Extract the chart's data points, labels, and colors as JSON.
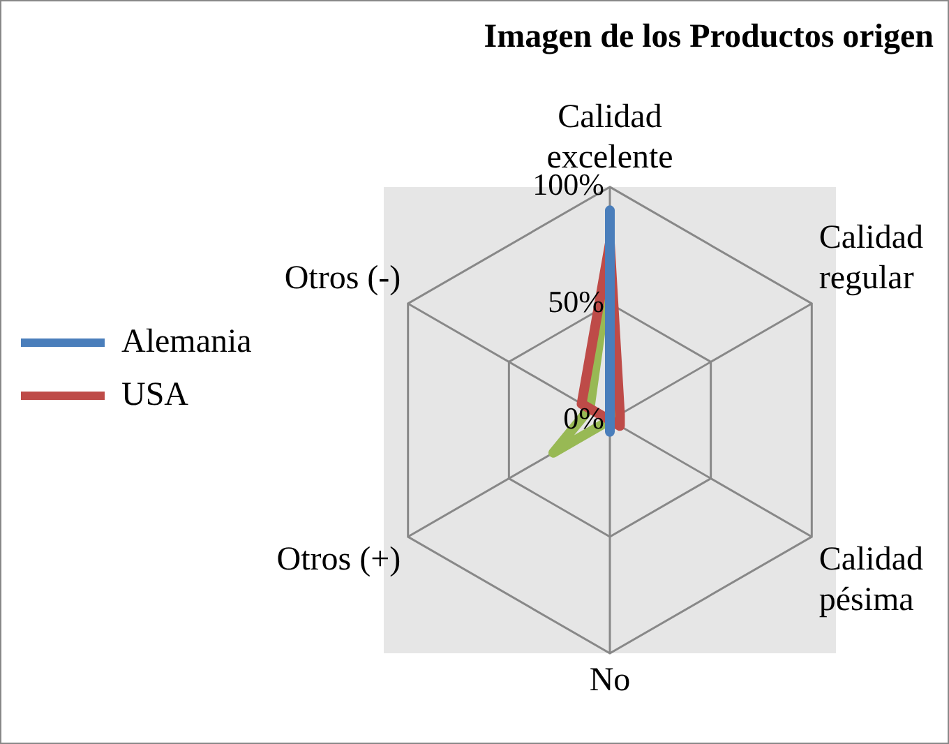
{
  "chart_data": {
    "type": "radar",
    "title": "Imagen de los Productos origen",
    "categories": [
      "Calidad excelente",
      "Calidad regular",
      "Calidad pésima",
      "No",
      "Otros (+)",
      "Otros (-)"
    ],
    "series": [
      {
        "name": "Alemania",
        "color": "#4a7ebb",
        "values": [
          90,
          0,
          0,
          5,
          0,
          0
        ]
      },
      {
        "name": "USA",
        "color": "#be4b48",
        "values": [
          76,
          5,
          5,
          0,
          0,
          14
        ]
      },
      {
        "color": "#98b954",
        "values": [
          67,
          2,
          0,
          0,
          28,
          10
        ]
      }
    ],
    "ylim": [
      0,
      100
    ],
    "yticks": [
      {
        "value": 0,
        "label": "0%"
      },
      {
        "value": 50,
        "label": "50%"
      },
      {
        "value": 100,
        "label": "100%"
      }
    ],
    "grid": true,
    "legend": "left",
    "marker": "none"
  }
}
